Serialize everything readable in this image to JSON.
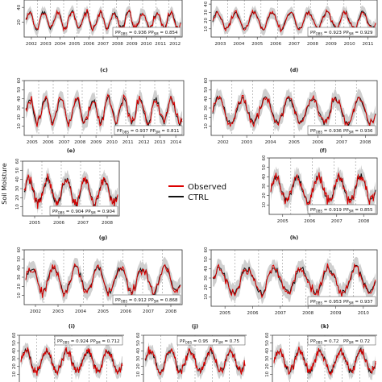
{
  "figure": {
    "ylabel": "Soil Moisture",
    "legend": [
      {
        "name": "Observed",
        "color": "#dd0000"
      },
      {
        "name": "CTRL",
        "color": "#111111"
      }
    ],
    "colors": {
      "observed": "#dd0000",
      "ctrl": "#111111",
      "band": "#cfcfcf",
      "axis": "#333333",
      "dashed": "#999999"
    }
  },
  "chart_data": [
    {
      "id": "a",
      "type": "line",
      "label": "",
      "x_ticks": [
        "2002",
        "2003",
        "2004",
        "2005",
        "2006",
        "2007",
        "2008",
        "2009",
        "2010",
        "2011",
        "2012"
      ],
      "y_ticks": [
        "20",
        "40"
      ],
      "ylim": [
        0,
        50
      ],
      "pp_obs": "0.936",
      "pp_sm": "0.854",
      "series": [
        {
          "name": "Observed"
        },
        {
          "name": "CTRL"
        }
      ]
    },
    {
      "id": "b",
      "type": "line",
      "label": "",
      "x_ticks": [
        "2003",
        "2004",
        "2005",
        "2006",
        "2007",
        "2008",
        "2009",
        "2010",
        "2011"
      ],
      "y_ticks": [
        "10",
        "20",
        "30",
        "40"
      ],
      "ylim": [
        0,
        45
      ],
      "pp_obs": "0.923",
      "pp_sm": "0.929",
      "series": [
        {
          "name": "Observed"
        },
        {
          "name": "CTRL"
        }
      ]
    },
    {
      "id": "c",
      "type": "line",
      "label": "(c)",
      "x_ticks": [
        "2005",
        "2006",
        "2007",
        "2008",
        "2009",
        "2010",
        "2011",
        "2012",
        "2013",
        "2014"
      ],
      "y_ticks": [
        "10",
        "20",
        "30",
        "40",
        "50",
        "60"
      ],
      "ylim": [
        0,
        60
      ],
      "pp_obs": "0.937",
      "pp_sm": "0.811",
      "series": [
        {
          "name": "Observed"
        },
        {
          "name": "CTRL"
        }
      ]
    },
    {
      "id": "d",
      "type": "line",
      "label": "(d)",
      "x_ticks": [
        "2002",
        "2003",
        "2004",
        "2005",
        "2006",
        "2007",
        "2008"
      ],
      "y_ticks": [
        "10",
        "20",
        "30",
        "40",
        "50",
        "60"
      ],
      "ylim": [
        0,
        60
      ],
      "pp_obs": "0.936",
      "pp_sm": "0.936",
      "series": [
        {
          "name": "Observed"
        },
        {
          "name": "CTRL"
        }
      ]
    },
    {
      "id": "e",
      "type": "line",
      "label": "(e)",
      "x_ticks": [
        "2005",
        "2006",
        "2007",
        "2008"
      ],
      "y_ticks": [
        "10",
        "20",
        "30",
        "40",
        "50",
        "60"
      ],
      "ylim": [
        0,
        60
      ],
      "pp_obs": "0.904",
      "pp_sm": "0.904",
      "series": [
        {
          "name": "Observed"
        },
        {
          "name": "CTRL"
        }
      ]
    },
    {
      "id": "f",
      "type": "line",
      "label": "(f)",
      "x_ticks": [
        "2005",
        "2006",
        "2007",
        "2008"
      ],
      "y_ticks": [
        "10",
        "20",
        "30",
        "40",
        "50",
        "60"
      ],
      "ylim": [
        0,
        60
      ],
      "pp_obs": "0.919",
      "pp_sm": "0.855",
      "series": [
        {
          "name": "Observed"
        },
        {
          "name": "CTRL"
        }
      ]
    },
    {
      "id": "g",
      "type": "line",
      "label": "(g)",
      "x_ticks": [
        "2002",
        "2003",
        "2004",
        "2005",
        "2006",
        "2007",
        "2008"
      ],
      "y_ticks": [
        "10",
        "20",
        "30",
        "40",
        "50",
        "60"
      ],
      "ylim": [
        0,
        60
      ],
      "pp_obs": "0.912",
      "pp_sm": "0.868",
      "series": [
        {
          "name": "Observed"
        },
        {
          "name": "CTRL"
        }
      ]
    },
    {
      "id": "h",
      "type": "line",
      "label": "(h)",
      "x_ticks": [
        "2005",
        "2006",
        "2007",
        "2008",
        "2009",
        "2010"
      ],
      "y_ticks": [
        "10",
        "20",
        "30",
        "40",
        "50",
        "60"
      ],
      "ylim": [
        0,
        60
      ],
      "pp_obs": "0.953",
      "pp_sm": "0.937",
      "series": [
        {
          "name": "Observed"
        },
        {
          "name": "CTRL"
        }
      ]
    },
    {
      "id": "i",
      "type": "line",
      "label": "(i)",
      "x_ticks": [],
      "y_ticks": [
        "10",
        "20",
        "30",
        "40",
        "50",
        "60"
      ],
      "ylim": [
        0,
        60
      ],
      "pp_obs": "0.924",
      "pp_sm": "0.712",
      "series": [
        {
          "name": "Observed"
        },
        {
          "name": "CTRL"
        }
      ]
    },
    {
      "id": "j",
      "type": "line",
      "label": "(j)",
      "x_ticks": [],
      "y_ticks": [
        "10",
        "20",
        "30",
        "40",
        "50",
        "60"
      ],
      "ylim": [
        0,
        60
      ],
      "pp_obs": "0.95",
      "pp_sm": "0.75",
      "series": [
        {
          "name": "Observed"
        },
        {
          "name": "CTRL"
        }
      ]
    },
    {
      "id": "k",
      "type": "line",
      "label": "(k)",
      "x_ticks": [],
      "y_ticks": [
        "10",
        "20",
        "30",
        "40",
        "50",
        "60"
      ],
      "ylim": [
        0,
        60
      ],
      "pp_obs": "0.72",
      "pp_sm": "0.72",
      "series": [
        {
          "name": "Observed"
        },
        {
          "name": "CTRL"
        }
      ]
    }
  ]
}
